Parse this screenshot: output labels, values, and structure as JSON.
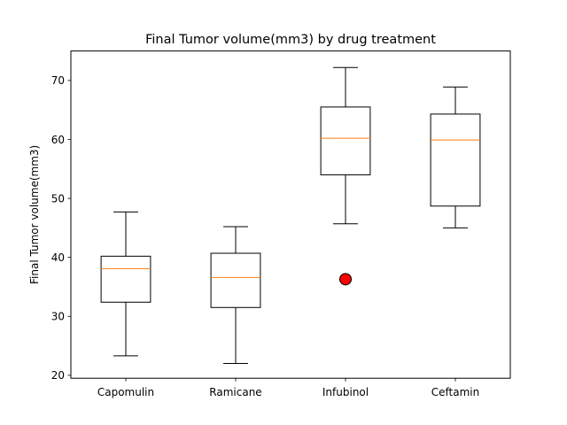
{
  "chart_data": {
    "type": "box",
    "title": "Final Tumor volume(mm3) by drug treatment",
    "xlabel": "",
    "ylabel": "Final Tumor volume(mm3)",
    "ylim": [
      19.5,
      75
    ],
    "yticks": [
      20,
      30,
      40,
      50,
      60,
      70
    ],
    "ytick_labels": [
      "20",
      "30",
      "40",
      "50",
      "60",
      "70"
    ],
    "grid": false,
    "categories": [
      "Capomulin",
      "Ramicane",
      "Infubinol",
      "Ceftamin"
    ],
    "boxes": [
      {
        "category": "Capomulin",
        "whisker_low": 23.3,
        "q1": 32.4,
        "median": 38.1,
        "q3": 40.2,
        "whisker_high": 47.7,
        "outliers": []
      },
      {
        "category": "Ramicane",
        "whisker_low": 22.0,
        "q1": 31.5,
        "median": 36.6,
        "q3": 40.7,
        "whisker_high": 45.2,
        "outliers": []
      },
      {
        "category": "Infubinol",
        "whisker_low": 45.7,
        "q1": 54.0,
        "median": 60.2,
        "q3": 65.5,
        "whisker_high": 72.2,
        "outliers": [
          36.3
        ]
      },
      {
        "category": "Ceftamin",
        "whisker_low": 45.0,
        "q1": 48.7,
        "median": 59.9,
        "q3": 64.3,
        "whisker_high": 68.9,
        "outliers": []
      }
    ],
    "colors": {
      "box": "#000000",
      "median": "#ff7f0e",
      "outlier_fill": "#ff0000",
      "outlier_edge": "#000000"
    }
  }
}
